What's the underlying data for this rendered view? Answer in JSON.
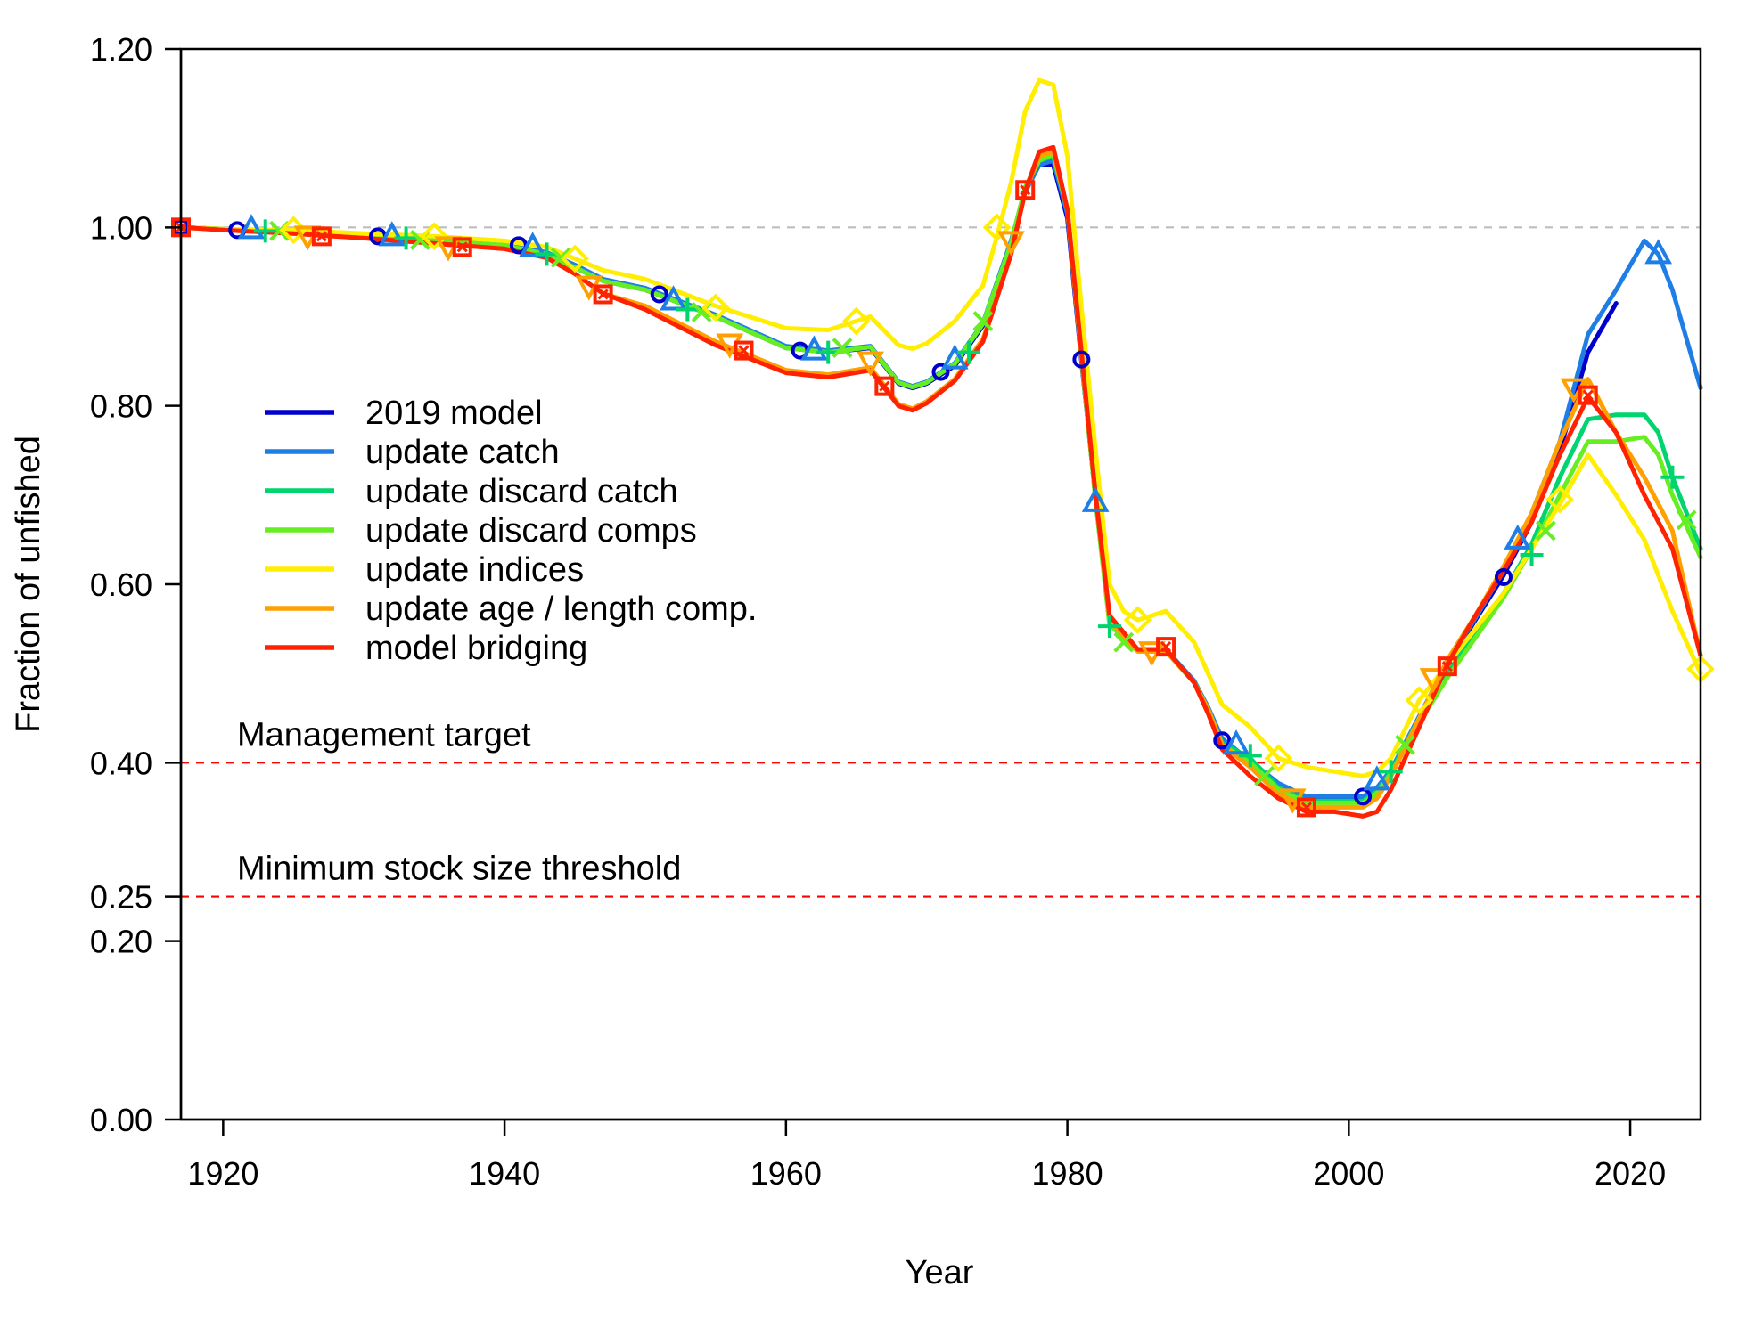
{
  "chart_data": {
    "type": "line",
    "xlabel": "Year",
    "ylabel": "Fraction of unfished",
    "xlim": [
      1917,
      2025
    ],
    "ylim": [
      0,
      1.2
    ],
    "x_ticks": [
      1920,
      1940,
      1960,
      1980,
      2000,
      2020
    ],
    "y_ticks": [
      {
        "value": 0.0,
        "label": "0.00"
      },
      {
        "value": 0.2,
        "label": "0.20"
      },
      {
        "value": 0.25,
        "label": "0.25"
      },
      {
        "value": 0.4,
        "label": "0.40"
      },
      {
        "value": 0.6,
        "label": "0.60"
      },
      {
        "value": 0.8,
        "label": "0.80"
      },
      {
        "value": 1.0,
        "label": "1.00"
      },
      {
        "value": 1.2,
        "label": "1.20"
      }
    ],
    "grid": false,
    "legend_position": "center-left",
    "reference_lines": [
      {
        "value": 1.0,
        "label": "",
        "color": "#bdbdbd"
      },
      {
        "value": 0.4,
        "label": "Management target",
        "color": "#ff0000"
      },
      {
        "value": 0.25,
        "label": "Minimum stock size threshold",
        "color": "#ff0000"
      }
    ],
    "series": [
      {
        "name": "2019 model",
        "color": "#0000cc",
        "marker": "circle",
        "x": [
          1917,
          1920,
          1925,
          1930,
          1935,
          1940,
          1943,
          1945,
          1947,
          1950,
          1955,
          1960,
          1963,
          1966,
          1968,
          1969,
          1970,
          1972,
          1974,
          1976,
          1977,
          1978,
          1979,
          1980,
          1981,
          1982,
          1983,
          1985,
          1987,
          1989,
          1990,
          1991,
          1993,
          1995,
          1997,
          1999,
          2001,
          2002,
          2003,
          2005,
          2007,
          2009,
          2011,
          2013,
          2015,
          2017,
          2019
        ],
        "y": [
          1.0,
          0.998,
          0.995,
          0.99,
          0.985,
          0.98,
          0.97,
          0.955,
          0.94,
          0.93,
          0.9,
          0.865,
          0.86,
          0.865,
          0.825,
          0.82,
          0.825,
          0.845,
          0.89,
          0.98,
          1.04,
          1.07,
          1.07,
          1.01,
          0.85,
          0.7,
          0.56,
          0.525,
          0.525,
          0.49,
          0.46,
          0.425,
          0.4,
          0.375,
          0.36,
          0.36,
          0.36,
          0.37,
          0.39,
          0.45,
          0.51,
          0.56,
          0.61,
          0.67,
          0.75,
          0.86,
          0.915
        ]
      },
      {
        "name": "update catch",
        "color": "#1e7ee6",
        "marker": "triangle",
        "x": [
          1917,
          1920,
          1925,
          1930,
          1935,
          1940,
          1943,
          1945,
          1947,
          1950,
          1955,
          1960,
          1963,
          1966,
          1968,
          1969,
          1970,
          1972,
          1974,
          1976,
          1977,
          1978,
          1979,
          1980,
          1981,
          1982,
          1983,
          1985,
          1987,
          1989,
          1990,
          1991,
          1993,
          1995,
          1997,
          1999,
          2001,
          2002,
          2003,
          2005,
          2007,
          2009,
          2011,
          2013,
          2015,
          2017,
          2019,
          2021,
          2022,
          2023,
          2025
        ],
        "y": [
          1.0,
          0.998,
          0.995,
          0.99,
          0.985,
          0.98,
          0.972,
          0.958,
          0.942,
          0.932,
          0.902,
          0.867,
          0.862,
          0.867,
          0.827,
          0.822,
          0.827,
          0.848,
          0.893,
          0.985,
          1.04,
          1.07,
          1.075,
          1.015,
          0.855,
          0.695,
          0.56,
          0.527,
          0.527,
          0.492,
          0.462,
          0.427,
          0.402,
          0.377,
          0.362,
          0.362,
          0.362,
          0.372,
          0.392,
          0.452,
          0.512,
          0.562,
          0.615,
          0.68,
          0.76,
          0.88,
          0.93,
          0.985,
          0.97,
          0.93,
          0.82
        ]
      },
      {
        "name": "update discard catch",
        "color": "#00d46e",
        "marker": "plus",
        "x": [
          1917,
          1920,
          1925,
          1930,
          1935,
          1940,
          1943,
          1945,
          1947,
          1950,
          1955,
          1960,
          1963,
          1966,
          1968,
          1969,
          1970,
          1972,
          1974,
          1976,
          1977,
          1978,
          1979,
          1980,
          1981,
          1982,
          1983,
          1985,
          1987,
          1989,
          1990,
          1991,
          1993,
          1995,
          1997,
          1999,
          2001,
          2002,
          2003,
          2005,
          2007,
          2009,
          2011,
          2013,
          2015,
          2017,
          2019,
          2021,
          2022,
          2023,
          2025
        ],
        "y": [
          1.0,
          0.998,
          0.995,
          0.99,
          0.985,
          0.98,
          0.97,
          0.955,
          0.94,
          0.93,
          0.9,
          0.865,
          0.86,
          0.866,
          0.826,
          0.821,
          0.826,
          0.847,
          0.892,
          0.982,
          1.045,
          1.075,
          1.08,
          1.02,
          0.855,
          0.695,
          0.555,
          0.525,
          0.525,
          0.49,
          0.46,
          0.422,
          0.405,
          0.372,
          0.357,
          0.357,
          0.357,
          0.368,
          0.39,
          0.45,
          0.5,
          0.545,
          0.59,
          0.645,
          0.72,
          0.785,
          0.79,
          0.79,
          0.77,
          0.72,
          0.64
        ]
      },
      {
        "name": "update discard comps",
        "color": "#66ee22",
        "marker": "x",
        "x": [
          1917,
          1920,
          1925,
          1930,
          1935,
          1940,
          1943,
          1945,
          1947,
          1950,
          1955,
          1960,
          1963,
          1966,
          1968,
          1969,
          1970,
          1972,
          1974,
          1976,
          1977,
          1978,
          1979,
          1980,
          1981,
          1982,
          1983,
          1985,
          1987,
          1989,
          1990,
          1991,
          1993,
          1995,
          1997,
          1999,
          2001,
          2002,
          2003,
          2005,
          2007,
          2009,
          2011,
          2013,
          2015,
          2017,
          2019,
          2021,
          2022,
          2023,
          2025
        ],
        "y": [
          1.0,
          0.998,
          0.995,
          0.99,
          0.985,
          0.98,
          0.97,
          0.955,
          0.94,
          0.93,
          0.9,
          0.865,
          0.86,
          0.866,
          0.826,
          0.821,
          0.826,
          0.847,
          0.892,
          0.982,
          1.045,
          1.075,
          1.082,
          1.02,
          0.855,
          0.695,
          0.555,
          0.525,
          0.525,
          0.49,
          0.46,
          0.42,
          0.4,
          0.37,
          0.355,
          0.355,
          0.355,
          0.366,
          0.388,
          0.445,
          0.495,
          0.54,
          0.585,
          0.64,
          0.7,
          0.76,
          0.76,
          0.765,
          0.745,
          0.7,
          0.63
        ]
      },
      {
        "name": "update indices",
        "color": "#ffee00",
        "marker": "diamond",
        "x": [
          1917,
          1920,
          1925,
          1930,
          1935,
          1940,
          1943,
          1945,
          1947,
          1950,
          1955,
          1960,
          1963,
          1965,
          1966,
          1968,
          1969,
          1970,
          1972,
          1974,
          1975,
          1976,
          1977,
          1978,
          1979,
          1980,
          1981,
          1982,
          1983,
          1984,
          1985,
          1987,
          1989,
          1990,
          1991,
          1993,
          1995,
          1997,
          1999,
          2001,
          2002,
          2003,
          2005,
          2007,
          2009,
          2011,
          2013,
          2015,
          2017,
          2019,
          2021,
          2023,
          2025
        ],
        "y": [
          1.0,
          0.998,
          0.997,
          0.993,
          0.99,
          0.985,
          0.978,
          0.965,
          0.952,
          0.942,
          0.912,
          0.887,
          0.885,
          0.895,
          0.9,
          0.868,
          0.864,
          0.87,
          0.895,
          0.935,
          0.99,
          1.05,
          1.13,
          1.165,
          1.16,
          1.08,
          0.91,
          0.75,
          0.6,
          0.57,
          0.56,
          0.57,
          0.535,
          0.5,
          0.465,
          0.44,
          0.405,
          0.395,
          0.39,
          0.385,
          0.39,
          0.405,
          0.47,
          0.51,
          0.55,
          0.59,
          0.64,
          0.69,
          0.745,
          0.7,
          0.65,
          0.57,
          0.5
        ]
      },
      {
        "name": "update age / length comp.",
        "color": "#ffa000",
        "marker": "triangle-down",
        "x": [
          1917,
          1920,
          1925,
          1930,
          1935,
          1940,
          1943,
          1945,
          1947,
          1950,
          1955,
          1960,
          1963,
          1966,
          1968,
          1969,
          1970,
          1972,
          1974,
          1976,
          1977,
          1978,
          1979,
          1980,
          1981,
          1982,
          1983,
          1985,
          1987,
          1989,
          1990,
          1991,
          1993,
          1995,
          1997,
          1999,
          2001,
          2002,
          2003,
          2005,
          2007,
          2009,
          2011,
          2013,
          2015,
          2017,
          2019,
          2021,
          2023,
          2025
        ],
        "y": [
          1.0,
          0.997,
          0.993,
          0.988,
          0.982,
          0.976,
          0.966,
          0.948,
          0.926,
          0.912,
          0.872,
          0.84,
          0.835,
          0.843,
          0.802,
          0.797,
          0.805,
          0.83,
          0.875,
          0.97,
          1.04,
          1.08,
          1.085,
          1.02,
          0.855,
          0.7,
          0.56,
          0.525,
          0.525,
          0.49,
          0.46,
          0.42,
          0.395,
          0.365,
          0.35,
          0.35,
          0.35,
          0.36,
          0.385,
          0.45,
          0.515,
          0.565,
          0.62,
          0.68,
          0.76,
          0.83,
          0.77,
          0.72,
          0.66,
          0.52
        ]
      },
      {
        "name": "model bridging",
        "color": "#ff2200",
        "marker": "square",
        "x": [
          1917,
          1920,
          1925,
          1930,
          1935,
          1940,
          1943,
          1945,
          1947,
          1950,
          1955,
          1960,
          1963,
          1966,
          1968,
          1969,
          1970,
          1972,
          1974,
          1976,
          1977,
          1978,
          1979,
          1980,
          1981,
          1982,
          1983,
          1985,
          1987,
          1989,
          1990,
          1991,
          1993,
          1995,
          1997,
          1999,
          2001,
          2002,
          2003,
          2005,
          2007,
          2009,
          2011,
          2013,
          2015,
          2017,
          2019,
          2021,
          2023,
          2025
        ],
        "y": [
          1.0,
          0.997,
          0.993,
          0.988,
          0.982,
          0.976,
          0.966,
          0.948,
          0.926,
          0.908,
          0.868,
          0.837,
          0.832,
          0.84,
          0.8,
          0.795,
          0.803,
          0.828,
          0.872,
          0.97,
          1.04,
          1.085,
          1.09,
          1.02,
          0.86,
          0.7,
          0.565,
          0.527,
          0.527,
          0.49,
          0.455,
          0.415,
          0.385,
          0.36,
          0.345,
          0.345,
          0.34,
          0.345,
          0.37,
          0.44,
          0.51,
          0.565,
          0.615,
          0.67,
          0.745,
          0.81,
          0.77,
          0.7,
          0.64,
          0.52
        ]
      }
    ],
    "markers": [
      {
        "series": 0,
        "points": [
          [
            1917,
            1.0
          ],
          [
            1921,
            0.997
          ],
          [
            1931,
            0.99
          ],
          [
            1941,
            0.98
          ],
          [
            1951,
            0.925
          ],
          [
            1961,
            0.862
          ],
          [
            1971,
            0.838
          ],
          [
            1981,
            0.852
          ],
          [
            1991,
            0.425
          ],
          [
            2001,
            0.362
          ],
          [
            2011,
            0.608
          ]
        ]
      },
      {
        "series": 1,
        "points": [
          [
            1922,
            0.998
          ],
          [
            1932,
            0.99
          ],
          [
            1942,
            0.978
          ],
          [
            1952,
            0.918
          ],
          [
            1962,
            0.862
          ],
          [
            1972,
            0.852
          ],
          [
            1982,
            0.692
          ],
          [
            1992,
            0.42
          ],
          [
            2002,
            0.38
          ],
          [
            2012,
            0.65
          ],
          [
            2022,
            0.97
          ]
        ]
      },
      {
        "series": 2,
        "points": [
          [
            1923,
            0.996
          ],
          [
            1933,
            0.988
          ],
          [
            1943,
            0.97
          ],
          [
            1953,
            0.908
          ],
          [
            1963,
            0.86
          ],
          [
            1973,
            0.86
          ],
          [
            1983,
            0.553
          ],
          [
            1993,
            0.408
          ],
          [
            2003,
            0.39
          ],
          [
            2013,
            0.633
          ],
          [
            2023,
            0.72
          ]
        ]
      },
      {
        "series": 3,
        "points": [
          [
            1924,
            0.996
          ],
          [
            1934,
            0.986
          ],
          [
            1944,
            0.966
          ],
          [
            1954,
            0.905
          ],
          [
            1964,
            0.865
          ],
          [
            1974,
            0.895
          ],
          [
            1984,
            0.535
          ],
          [
            1994,
            0.385
          ],
          [
            2004,
            0.42
          ],
          [
            2014,
            0.66
          ],
          [
            2024,
            0.672
          ]
        ]
      },
      {
        "series": 4,
        "points": [
          [
            1925,
            0.997
          ],
          [
            1935,
            0.99
          ],
          [
            1945,
            0.965
          ],
          [
            1955,
            0.91
          ],
          [
            1965,
            0.895
          ],
          [
            1975,
            1.0
          ],
          [
            1985,
            0.56
          ],
          [
            1995,
            0.405
          ],
          [
            2005,
            0.47
          ],
          [
            2015,
            0.695
          ],
          [
            2025,
            0.505
          ]
        ]
      },
      {
        "series": 5,
        "points": [
          [
            1926,
            0.991
          ],
          [
            1936,
            0.979
          ],
          [
            1946,
            0.935
          ],
          [
            1956,
            0.87
          ],
          [
            1966,
            0.85
          ],
          [
            1976,
            0.985
          ],
          [
            1986,
            0.525
          ],
          [
            1996,
            0.36
          ],
          [
            2006,
            0.495
          ],
          [
            2016,
            0.82
          ]
        ]
      },
      {
        "series": 6,
        "points": [
          [
            1917,
            1.0
          ],
          [
            1927,
            0.99
          ],
          [
            1937,
            0.978
          ],
          [
            1947,
            0.925
          ],
          [
            1957,
            0.862
          ],
          [
            1967,
            0.822
          ],
          [
            1977,
            1.042
          ],
          [
            1987,
            0.53
          ],
          [
            1997,
            0.35
          ],
          [
            2007,
            0.508
          ],
          [
            2017,
            0.812
          ]
        ]
      }
    ]
  }
}
